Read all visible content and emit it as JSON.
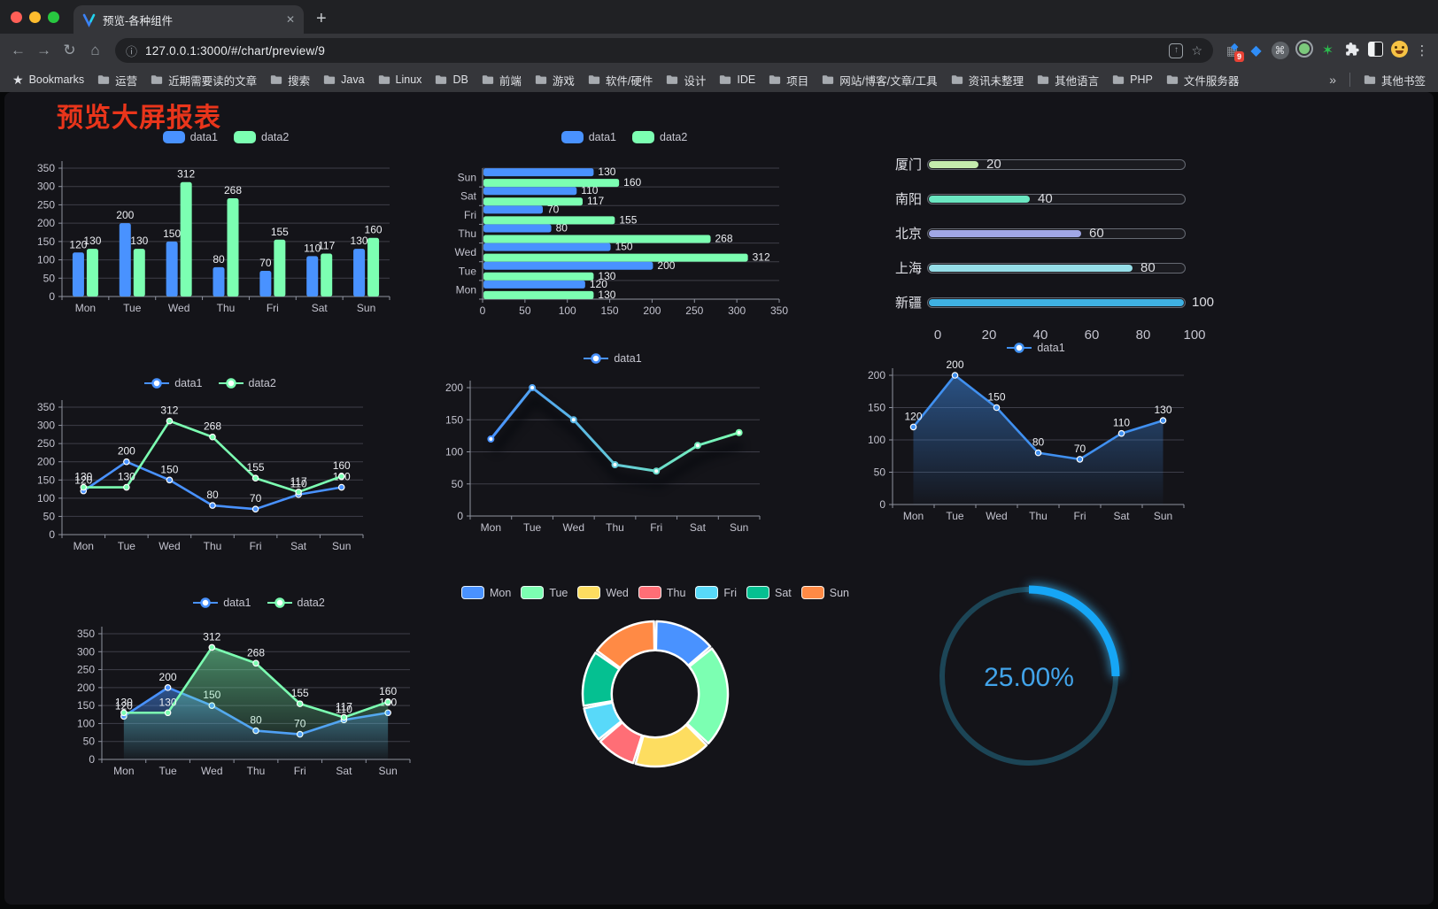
{
  "browser": {
    "tab_title": "预览-各种组件",
    "url": "127.0.0.1:3000/#/chart/preview/9",
    "icons": {
      "back": "←",
      "forward": "→",
      "reload": "↻",
      "home": "⌂",
      "info": "ⓘ",
      "share": "↑",
      "star": "☆",
      "cmd": "⌘",
      "grid": "▦",
      "diamond": "◆",
      "green_star": "✶",
      "kebab": "⋮",
      "tab_close": "✕",
      "new_tab": "+",
      "overflow": "»",
      "extension_badge": "9",
      "bookmarks_star": "★"
    },
    "bookmarks_label": "Bookmarks",
    "bookmarks": [
      "运营",
      "近期需要读的文章",
      "搜索",
      "Java",
      "Linux",
      "DB",
      "前端",
      "游戏",
      "软件/硬件",
      "设计",
      "IDE",
      "项目",
      "网站/博客/文章/工具",
      "资讯未整理",
      "其他语言",
      "PHP",
      "文件服务器"
    ],
    "other_bookmarks": "其他书签"
  },
  "page": {
    "title": "预览大屏报表",
    "title_color": "#e9351b"
  },
  "chart_data": [
    {
      "id": "grouped-bar-vertical",
      "type": "bar",
      "categories": [
        "Mon",
        "Tue",
        "Wed",
        "Thu",
        "Fri",
        "Sat",
        "Sun"
      ],
      "series": [
        {
          "name": "data1",
          "color": "#4992ff",
          "values": [
            120,
            200,
            150,
            80,
            70,
            110,
            130
          ]
        },
        {
          "name": "data2",
          "color": "#7cffb2",
          "values": [
            130,
            130,
            312,
            268,
            155,
            117,
            160
          ]
        }
      ],
      "ylim": [
        0,
        350
      ],
      "yticks": [
        0,
        50,
        100,
        150,
        200,
        250,
        300,
        350
      ],
      "legend_position": "top",
      "grid": true,
      "labels": true
    },
    {
      "id": "grouped-bar-horizontal",
      "type": "bar-horizontal",
      "categories": [
        "Mon",
        "Tue",
        "Wed",
        "Thu",
        "Fri",
        "Sat",
        "Sun"
      ],
      "categories_display": "Mon at bottom, Sun at top",
      "series": [
        {
          "name": "data1",
          "color": "#4992ff",
          "values": [
            120,
            200,
            150,
            80,
            70,
            110,
            130
          ]
        },
        {
          "name": "data2",
          "color": "#7cffb2",
          "values": [
            130,
            130,
            312,
            268,
            155,
            117,
            160
          ]
        }
      ],
      "xlim": [
        0,
        350
      ],
      "xticks": [
        0,
        50,
        100,
        150,
        200,
        250,
        300,
        350
      ],
      "legend_position": "top",
      "labels": true
    },
    {
      "id": "city-progress-bars",
      "type": "progress",
      "rows": [
        {
          "label": "厦门",
          "value": 20,
          "color": "#c4ebad"
        },
        {
          "label": "南阳",
          "value": 40,
          "color": "#6be6c1"
        },
        {
          "label": "北京",
          "value": 60,
          "color": "#a0a7e6"
        },
        {
          "label": "上海",
          "value": 80,
          "color": "#96dee8"
        },
        {
          "label": "新疆",
          "value": 100,
          "color": "#3fb1e3"
        }
      ],
      "xlim": [
        0,
        100
      ],
      "xticks": [
        0,
        20,
        40,
        60,
        80,
        100
      ]
    },
    {
      "id": "line-two-series",
      "type": "line",
      "categories": [
        "Mon",
        "Tue",
        "Wed",
        "Thu",
        "Fri",
        "Sat",
        "Sun"
      ],
      "series": [
        {
          "name": "data1",
          "color": "#4992ff",
          "values": [
            120,
            200,
            150,
            80,
            70,
            110,
            130
          ]
        },
        {
          "name": "data2",
          "color": "#7cffb2",
          "values": [
            130,
            130,
            312,
            268,
            155,
            117,
            160
          ]
        }
      ],
      "ylim": [
        0,
        350
      ],
      "yticks": [
        0,
        50,
        100,
        150,
        200,
        250,
        300,
        350
      ],
      "legend_position": "top",
      "labels": true
    },
    {
      "id": "line-gradient-shadow",
      "type": "line-gradient",
      "categories": [
        "Mon",
        "Tue",
        "Wed",
        "Thu",
        "Fri",
        "Sat",
        "Sun"
      ],
      "series": [
        {
          "name": "data1",
          "gradient": [
            "#4992ff",
            "#7cffb2"
          ],
          "values": [
            120,
            200,
            150,
            80,
            70,
            110,
            130
          ]
        }
      ],
      "ylim": [
        0,
        200
      ],
      "yticks": [
        0,
        50,
        100,
        150,
        200
      ],
      "legend_position": "top",
      "labels": false,
      "shadow": true
    },
    {
      "id": "line-area-single",
      "type": "line",
      "categories": [
        "Mon",
        "Tue",
        "Wed",
        "Thu",
        "Fri",
        "Sat",
        "Sun"
      ],
      "series": [
        {
          "name": "data1",
          "color": "#4090f0",
          "values": [
            120,
            200,
            150,
            80,
            70,
            110,
            130
          ],
          "area": true
        }
      ],
      "ylim": [
        0,
        200
      ],
      "yticks": [
        0,
        50,
        100,
        150,
        200
      ],
      "legend_position": "top",
      "labels": true
    },
    {
      "id": "line-area-two-series",
      "type": "line",
      "categories": [
        "Mon",
        "Tue",
        "Wed",
        "Thu",
        "Fri",
        "Sat",
        "Sun"
      ],
      "series": [
        {
          "name": "data1",
          "color": "#4992ff",
          "values": [
            120,
            200,
            150,
            80,
            70,
            110,
            130
          ],
          "area": true
        },
        {
          "name": "data2",
          "color": "#7cffb2",
          "values": [
            130,
            130,
            312,
            268,
            155,
            117,
            160
          ],
          "area": true
        }
      ],
      "ylim": [
        0,
        350
      ],
      "yticks": [
        0,
        50,
        100,
        150,
        200,
        250,
        300,
        350
      ],
      "legend_position": "top",
      "labels": true
    },
    {
      "id": "donut-week",
      "type": "pie",
      "categories": [
        "Mon",
        "Tue",
        "Wed",
        "Thu",
        "Fri",
        "Sat",
        "Sun"
      ],
      "values": [
        120,
        200,
        150,
        80,
        70,
        110,
        130
      ],
      "colors": [
        "#4992ff",
        "#7cffb2",
        "#fddd60",
        "#ff6e76",
        "#58d9f9",
        "#05c091",
        "#ff8a45"
      ],
      "inner_radius_ratio": 0.6,
      "legend_position": "top"
    },
    {
      "id": "progress-gauge",
      "type": "gauge",
      "value_label": "25.00%",
      "percent": 25,
      "arc_color": "#16a6f6",
      "track_color": "#1c4556",
      "text_color": "#42a4ea"
    }
  ]
}
